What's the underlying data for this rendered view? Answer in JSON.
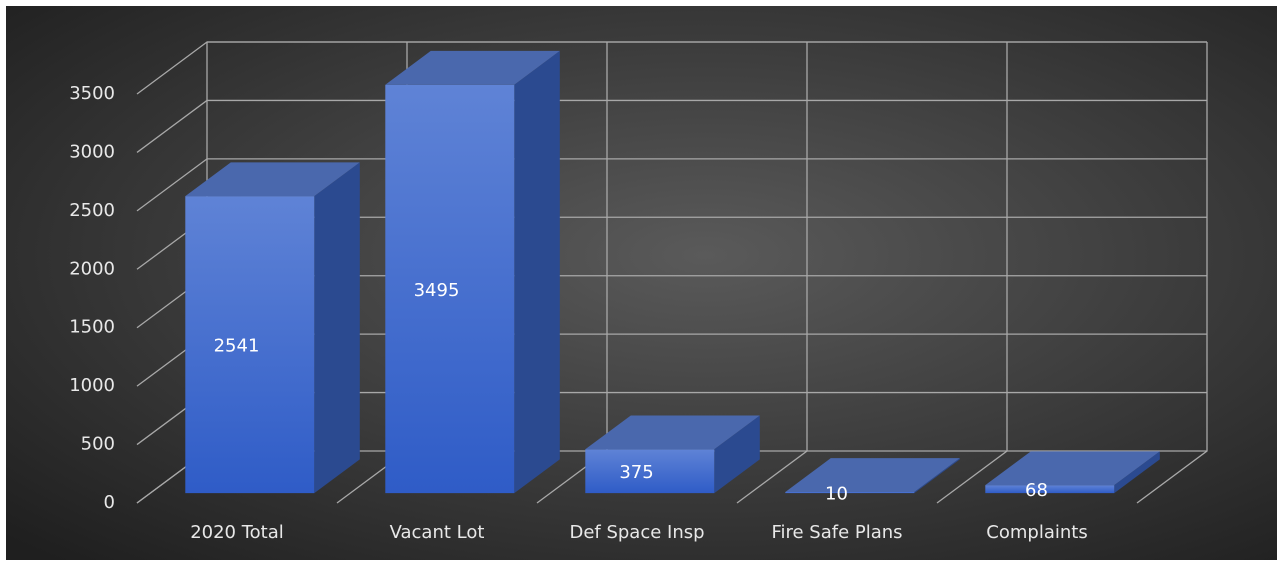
{
  "chart_data": {
    "type": "bar3d",
    "categories": [
      "2020 Total",
      "Vacant Lot",
      "Def Space Insp",
      "Fire Safe Plans",
      "Complaints"
    ],
    "values": [
      2541,
      3495,
      375,
      10,
      68
    ],
    "color": "#3f66c9",
    "ylim": [
      0,
      3500
    ],
    "yticks": [
      0,
      500,
      1000,
      1500,
      2000,
      2500,
      3000,
      3500
    ],
    "grid": true
  }
}
